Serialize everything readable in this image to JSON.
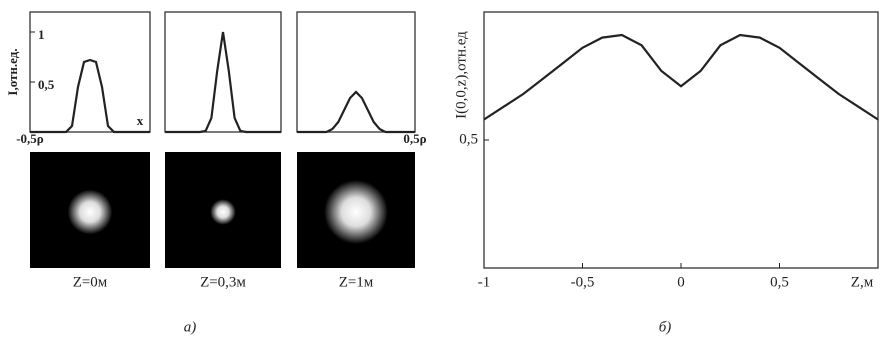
{
  "panel_labels": [
    "а)",
    "б)"
  ],
  "chart_data": [
    {
      "type": "line",
      "caption": "Z=0м",
      "ylabel": "I,отн.ед.",
      "xlabel": "x",
      "x": [
        -0.5,
        -0.45,
        -0.4,
        -0.35,
        -0.3,
        -0.25,
        -0.2,
        -0.15,
        -0.1,
        -0.05,
        0,
        0.05,
        0.1,
        0.15,
        0.2,
        0.25,
        0.3,
        0.35,
        0.4,
        0.45,
        0.5
      ],
      "values": [
        0,
        0,
        0,
        0,
        0,
        0,
        0,
        0.06,
        0.45,
        0.7,
        0.72,
        0.7,
        0.45,
        0.06,
        0,
        0,
        0,
        0,
        0,
        0,
        0
      ],
      "color": "#222222",
      "xlim": [
        -0.5,
        0.5
      ],
      "ylim": [
        0,
        1.2
      ],
      "xticks": [
        {
          "value": -0.5,
          "label": "-0,5ρ"
        }
      ],
      "yticks": [
        {
          "value": 0.5,
          "label": "0,5"
        },
        1
      ]
    },
    {
      "type": "line",
      "caption": "Z=0,3м",
      "x": [
        -0.5,
        -0.45,
        -0.4,
        -0.35,
        -0.3,
        -0.25,
        -0.2,
        -0.15,
        -0.1,
        -0.05,
        0,
        0.05,
        0.1,
        0.15,
        0.2,
        0.25,
        0.3,
        0.35,
        0.4,
        0.45,
        0.5
      ],
      "values": [
        0,
        0,
        0,
        0,
        0,
        0,
        0,
        0.01,
        0.14,
        0.61,
        1,
        0.61,
        0.14,
        0.01,
        0,
        0,
        0,
        0,
        0,
        0,
        0
      ],
      "color": "#222222",
      "xlim": [
        -0.5,
        0.5
      ],
      "ylim": [
        0,
        1.2
      ]
    },
    {
      "type": "line",
      "caption": "Z=1м",
      "x": [
        -0.5,
        -0.45,
        -0.4,
        -0.35,
        -0.3,
        -0.25,
        -0.2,
        -0.15,
        -0.1,
        -0.05,
        0,
        0.05,
        0.1,
        0.15,
        0.2,
        0.25,
        0.3,
        0.35,
        0.4,
        0.45,
        0.5
      ],
      "values": [
        0,
        0,
        0,
        0,
        0,
        0,
        0.03,
        0.1,
        0.22,
        0.34,
        0.4,
        0.34,
        0.22,
        0.1,
        0.03,
        0,
        0,
        0,
        0,
        0,
        0
      ],
      "color": "#222222",
      "xlim": [
        -0.5,
        0.5
      ],
      "ylim": [
        0,
        1.2
      ],
      "xticks": [
        {
          "value": 0.5,
          "label": "0,5ρ"
        }
      ]
    },
    {
      "type": "line",
      "ylabel": "I(0,0,z),отн.ед",
      "xlabel": "Z,м",
      "x": [
        -1,
        -0.9,
        -0.8,
        -0.7,
        -0.6,
        -0.5,
        -0.4,
        -0.3,
        -0.2,
        -0.1,
        0,
        0.1,
        0.2,
        0.3,
        0.4,
        0.5,
        0.6,
        0.7,
        0.8,
        0.9,
        1
      ],
      "values": [
        0.58,
        0.63,
        0.68,
        0.74,
        0.8,
        0.86,
        0.9,
        0.91,
        0.87,
        0.77,
        0.71,
        0.77,
        0.87,
        0.91,
        0.9,
        0.86,
        0.8,
        0.74,
        0.68,
        0.63,
        0.58
      ],
      "color": "#222222",
      "xlim": [
        -1,
        1
      ],
      "ylim": [
        0,
        1
      ],
      "xticks": [
        -1,
        {
          "value": -0.5,
          "label": "-0,5"
        },
        0,
        {
          "value": 0.5,
          "label": "0,5"
        }
      ],
      "yticks": [
        {
          "value": 0.5,
          "label": "0,5"
        }
      ]
    }
  ]
}
